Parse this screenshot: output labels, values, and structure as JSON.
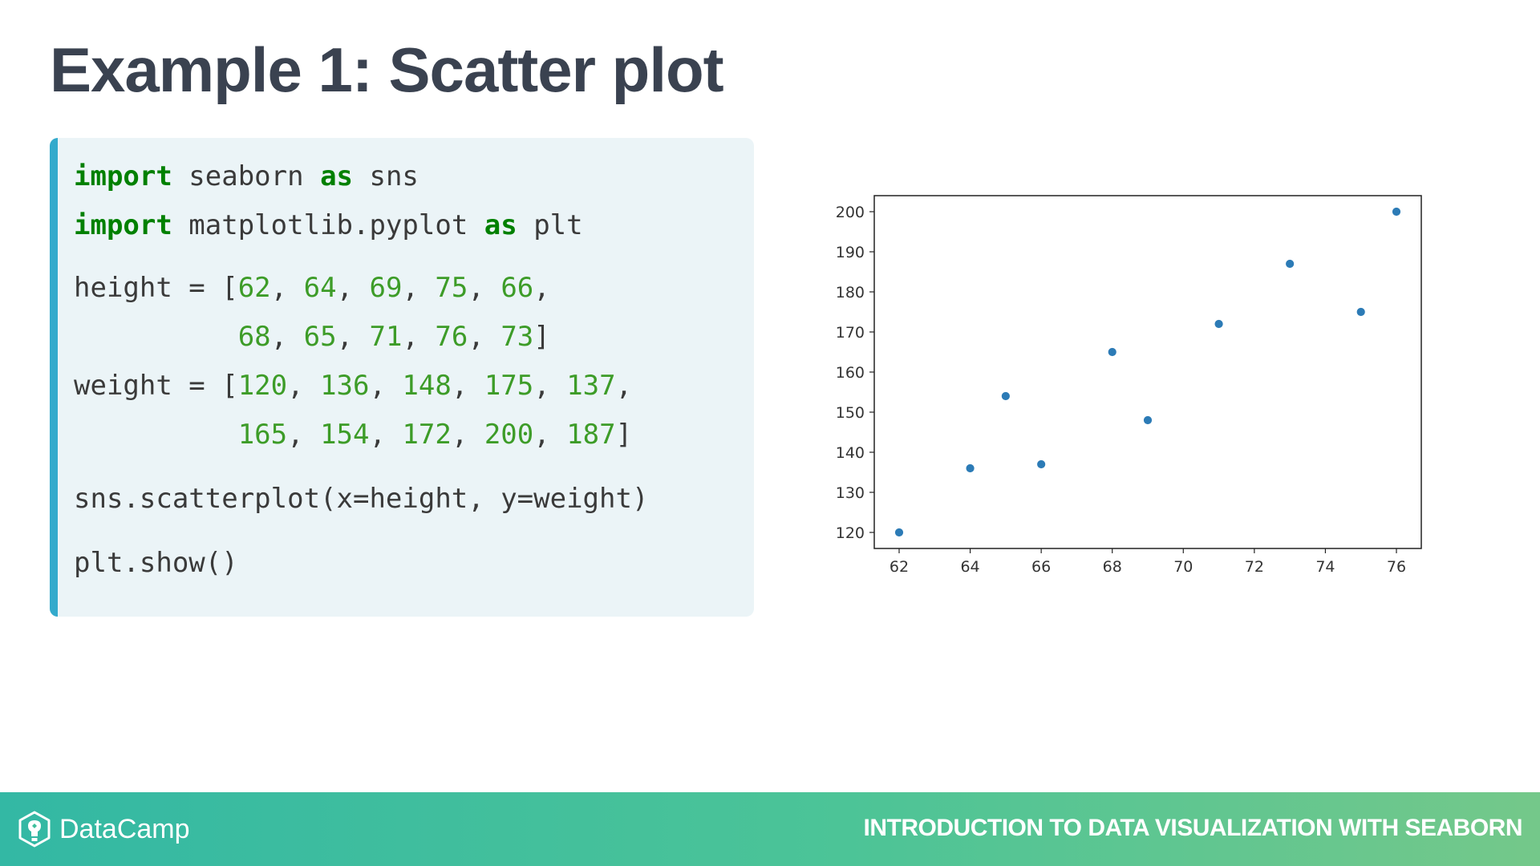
{
  "slide": {
    "title": "Example 1: Scatter plot"
  },
  "code": {
    "lines": [
      [
        {
          "t": "import",
          "c": "kw"
        },
        {
          "t": " seaborn "
        },
        {
          "t": "as",
          "c": "kw"
        },
        {
          "t": " sns"
        }
      ],
      [
        {
          "t": "import",
          "c": "kw"
        },
        {
          "t": " matplotlib.pyplot "
        },
        {
          "t": "as",
          "c": "kw"
        },
        {
          "t": " plt"
        }
      ],
      [
        {
          "t": "height = ["
        },
        {
          "t": "62",
          "c": "num"
        },
        {
          "t": ", "
        },
        {
          "t": "64",
          "c": "num"
        },
        {
          "t": ", "
        },
        {
          "t": "69",
          "c": "num"
        },
        {
          "t": ", "
        },
        {
          "t": "75",
          "c": "num"
        },
        {
          "t": ", "
        },
        {
          "t": "66",
          "c": "num"
        },
        {
          "t": ","
        }
      ],
      [
        {
          "t": "          "
        },
        {
          "t": "68",
          "c": "num"
        },
        {
          "t": ", "
        },
        {
          "t": "65",
          "c": "num"
        },
        {
          "t": ", "
        },
        {
          "t": "71",
          "c": "num"
        },
        {
          "t": ", "
        },
        {
          "t": "76",
          "c": "num"
        },
        {
          "t": ", "
        },
        {
          "t": "73",
          "c": "num"
        },
        {
          "t": "]"
        }
      ],
      [
        {
          "t": "weight = ["
        },
        {
          "t": "120",
          "c": "num"
        },
        {
          "t": ", "
        },
        {
          "t": "136",
          "c": "num"
        },
        {
          "t": ", "
        },
        {
          "t": "148",
          "c": "num"
        },
        {
          "t": ", "
        },
        {
          "t": "175",
          "c": "num"
        },
        {
          "t": ", "
        },
        {
          "t": "137",
          "c": "num"
        },
        {
          "t": ","
        }
      ],
      [
        {
          "t": "          "
        },
        {
          "t": "165",
          "c": "num"
        },
        {
          "t": ", "
        },
        {
          "t": "154",
          "c": "num"
        },
        {
          "t": ", "
        },
        {
          "t": "172",
          "c": "num"
        },
        {
          "t": ", "
        },
        {
          "t": "200",
          "c": "num"
        },
        {
          "t": ", "
        },
        {
          "t": "187",
          "c": "num"
        },
        {
          "t": "]"
        }
      ],
      [
        {
          "t": "sns.scatterplot(x=height, y=weight)"
        }
      ],
      [
        {
          "t": "plt.show()"
        }
      ]
    ]
  },
  "chart_data": {
    "type": "scatter",
    "x": [
      62,
      64,
      69,
      75,
      66,
      68,
      65,
      71,
      76,
      73
    ],
    "y": [
      120,
      136,
      148,
      175,
      137,
      165,
      154,
      172,
      200,
      187
    ],
    "xlim": [
      61.3,
      76.7
    ],
    "ylim": [
      116,
      204
    ],
    "xticks": [
      62,
      64,
      66,
      68,
      70,
      72,
      74,
      76
    ],
    "yticks": [
      120,
      130,
      140,
      150,
      160,
      170,
      180,
      190,
      200
    ],
    "title": "",
    "xlabel": "",
    "ylabel": "",
    "grid": false,
    "point_color": "#2c7bb6"
  },
  "footer": {
    "brand": "DataCamp",
    "course": "INTRODUCTION TO DATA VISUALIZATION WITH SEABORN",
    "brand_icon": "datacamp-logo-icon"
  }
}
